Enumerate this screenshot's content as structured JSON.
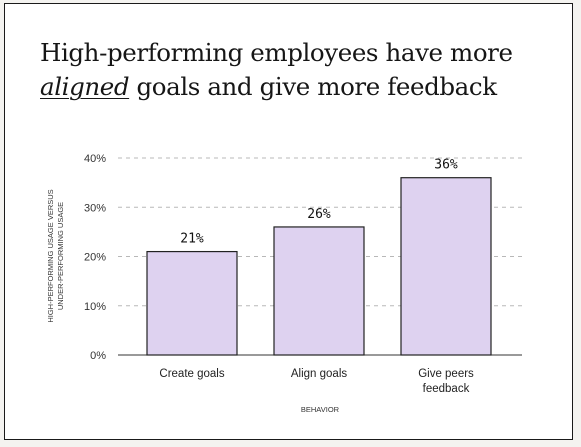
{
  "header": {
    "title_line1": "High-performing employees have more",
    "title_accent": "aligned",
    "title_line2_rest": " goals and give more feedback"
  },
  "colors": {
    "bar": "#ded2f0",
    "bar_stroke": "#222222",
    "grid": "#b8b8b8",
    "background": "#ffffff"
  },
  "chart_data": {
    "type": "bar",
    "title": "High-performing employees have more aligned goals and give more feedback",
    "categories": [
      "Create goals",
      "Align goals",
      "Give peers feedback"
    ],
    "category_lines": [
      [
        "Create goals"
      ],
      [
        "Align goals"
      ],
      [
        "Give peers",
        "feedback"
      ]
    ],
    "values": [
      21,
      26,
      36
    ],
    "value_labels": [
      "21%",
      "26%",
      "36%"
    ],
    "xlabel": "BEHAVIOR",
    "ylabel_lines": [
      "HIGH-PERFORMING USAGE VERSUS",
      "UNDER-PERFORMING USAGE"
    ],
    "yticks": [
      0,
      10,
      20,
      30,
      40
    ],
    "ytick_labels": [
      "0%",
      "10%",
      "20%",
      "30%",
      "40%"
    ],
    "ylim": [
      0,
      40
    ],
    "grid": true,
    "legend": "none"
  }
}
